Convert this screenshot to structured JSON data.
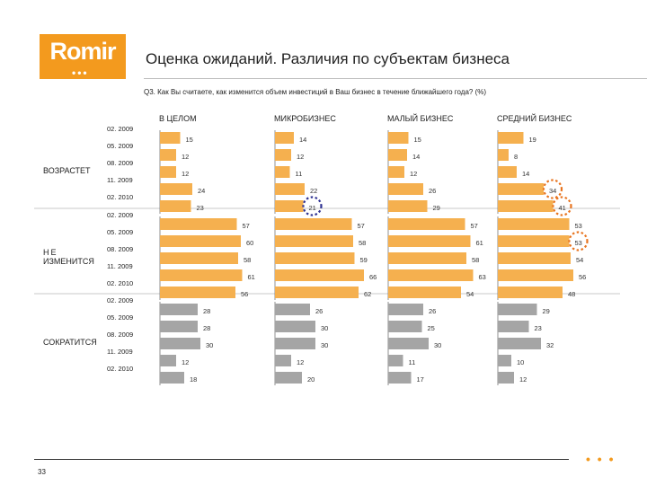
{
  "logo": {
    "text": "Romir",
    "dots": "•••"
  },
  "title": "Оценка ожиданий. Различия по субъектам бизнеса",
  "question": "Q3. Как Вы считаете, как изменится объем инвестиций в Ваш бизнес в течение ближайшего года? (%)",
  "page_number": "33",
  "footer_dots": "• • •",
  "colors": {
    "accent": "#f39a1e",
    "orange_bar": "#f5b04f",
    "gray_bar": "#a5a5a5",
    "blue_circle": "#2e3192",
    "orange_circle": "#e8741f"
  },
  "chart_data": {
    "type": "bar",
    "orientation": "horizontal",
    "columns": [
      "В ЦЕЛОМ",
      "МИКРОБИЗНЕС",
      "МАЛЫЙ БИЗНЕС",
      "СРЕДНИЙ БИЗНЕС"
    ],
    "periods": [
      "02. 2009",
      "05. 2009",
      "08. 2009",
      "11. 2009",
      "02. 2010"
    ],
    "groups": [
      {
        "label": "ВОЗРАСТЕТ",
        "label_lines": [
          "ВОЗРАСТЕТ"
        ],
        "color": "orange",
        "values": [
          [
            15,
            12,
            12,
            24,
            23
          ],
          [
            14,
            12,
            11,
            22,
            21
          ],
          [
            15,
            14,
            12,
            26,
            29
          ],
          [
            19,
            8,
            14,
            34,
            41
          ]
        ]
      },
      {
        "label": "НЕ ИЗМЕНИТСЯ",
        "label_lines": [
          "НЕ",
          "ИЗМЕНИТСЯ"
        ],
        "color": "orange",
        "values": [
          [
            57,
            60,
            58,
            61,
            56
          ],
          [
            57,
            58,
            59,
            66,
            62
          ],
          [
            57,
            61,
            58,
            63,
            54
          ],
          [
            53,
            53,
            54,
            56,
            48
          ]
        ]
      },
      {
        "label": "СОКРАТИТСЯ",
        "label_lines": [
          "СОКРАТИТСЯ"
        ],
        "color": "gray",
        "values": [
          [
            28,
            28,
            30,
            12,
            18
          ],
          [
            26,
            30,
            30,
            12,
            20
          ],
          [
            26,
            25,
            30,
            11,
            17
          ],
          [
            29,
            23,
            32,
            10,
            12
          ]
        ]
      }
    ],
    "highlights": [
      {
        "group": 0,
        "column": 1,
        "period": 4,
        "color": "blue"
      },
      {
        "group": 0,
        "column": 3,
        "period": 3,
        "color": "orange"
      },
      {
        "group": 0,
        "column": 3,
        "period": 4,
        "color": "orange"
      },
      {
        "group": 1,
        "column": 3,
        "period": 1,
        "color": "orange"
      }
    ],
    "grid": false,
    "legend": "none"
  }
}
